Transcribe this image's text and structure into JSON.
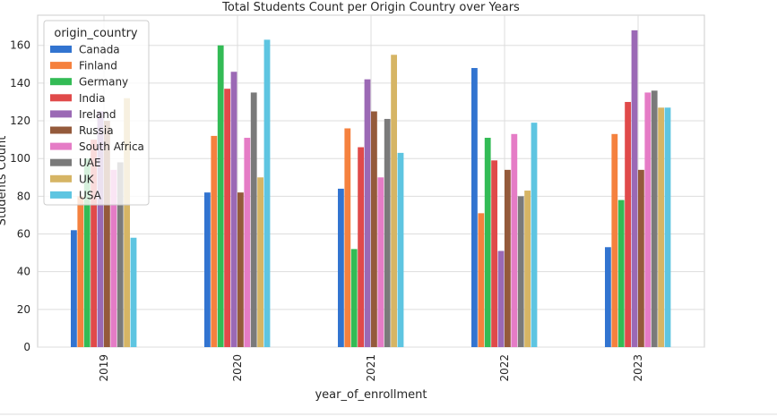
{
  "chart_data": {
    "type": "bar",
    "title": "Total Students Count per Origin Country over Years",
    "xlabel": "year_of_enrollment",
    "ylabel": "Students Count",
    "categories": [
      "2019",
      "2020",
      "2021",
      "2022",
      "2023"
    ],
    "ylim": [
      0,
      176
    ],
    "yticks": [
      0,
      20,
      40,
      60,
      80,
      100,
      120,
      140,
      160
    ],
    "grid": true,
    "legend": {
      "title": "origin_country",
      "placement": "top-left"
    },
    "series": [
      {
        "name": "Canada",
        "color": "#3274d0",
        "values": [
          62,
          82,
          84,
          148,
          53
        ]
      },
      {
        "name": "Finland",
        "color": "#f5813e",
        "values": [
          80,
          112,
          116,
          71,
          113
        ]
      },
      {
        "name": "Germany",
        "color": "#33bb55",
        "values": [
          100,
          160,
          52,
          111,
          78
        ]
      },
      {
        "name": "India",
        "color": "#e04a4a",
        "values": [
          110,
          137,
          106,
          99,
          130
        ]
      },
      {
        "name": "Ireland",
        "color": "#9b69b5",
        "values": [
          125,
          146,
          142,
          51,
          168
        ]
      },
      {
        "name": "Russia",
        "color": "#945a3b",
        "values": [
          120,
          82,
          125,
          94,
          94
        ]
      },
      {
        "name": "South Africa",
        "color": "#e57cc6",
        "values": [
          94,
          111,
          90,
          113,
          135
        ]
      },
      {
        "name": "UAE",
        "color": "#7a7a7a",
        "values": [
          98,
          135,
          121,
          80,
          136
        ]
      },
      {
        "name": "UK",
        "color": "#d6b565",
        "values": [
          132,
          90,
          155,
          83,
          127
        ]
      },
      {
        "name": "USA",
        "color": "#5ec5e1",
        "values": [
          58,
          163,
          103,
          119,
          127
        ]
      }
    ]
  }
}
